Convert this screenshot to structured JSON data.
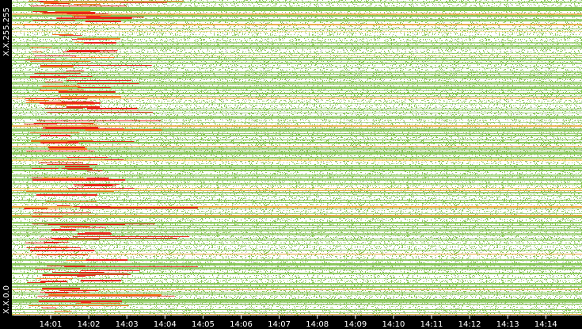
{
  "chart_data": {
    "type": "heatmap",
    "x": [
      "14:01",
      "14:02",
      "14:03",
      "14:04",
      "14:05",
      "14:06",
      "14:07",
      "14:08",
      "14:09",
      "14:10",
      "14:11",
      "14:12",
      "14:13",
      "14:14"
    ],
    "y_labels": [
      "X.X.255.255",
      "X.X.0.0"
    ]
  }
}
